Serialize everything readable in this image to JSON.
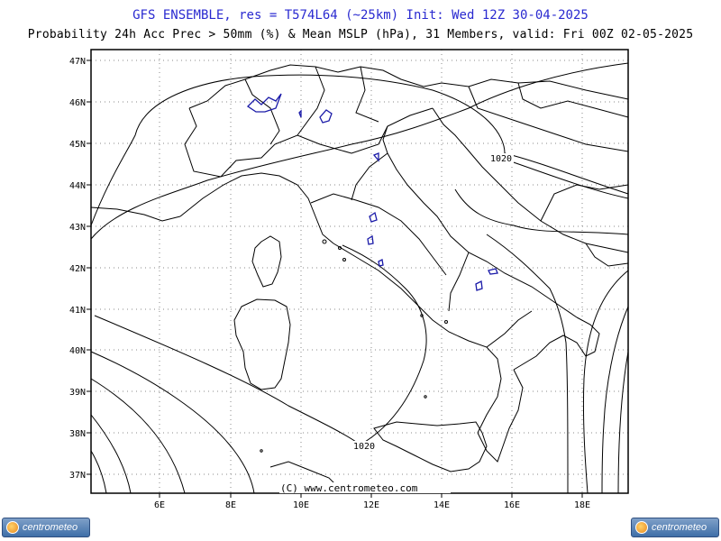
{
  "header": {
    "title": "GFS ENSEMBLE, res = T574L64 (~25km)   Init: Wed 12Z 30-04-2025",
    "subtitle": "Probability 24h Acc Prec > 50mm (%) & Mean MSLP (hPa), 31 Members, valid: Fri 00Z 02-05-2025"
  },
  "map": {
    "lat_labels": [
      "47N",
      "46N",
      "45N",
      "44N",
      "43N",
      "42N",
      "41N",
      "40N",
      "39N",
      "38N",
      "37N"
    ],
    "lon_labels": [
      "6E",
      "8E",
      "10E",
      "12E",
      "14E",
      "16E",
      "18E"
    ],
    "isobar_labels": [
      "1020",
      "1020"
    ],
    "copyright": "(C) www.centrometeo.com",
    "colors": {
      "frame": "#000000",
      "coast": "#000000",
      "isobar": "#000000",
      "grid": "#8a8a8a",
      "probability_contour": "#1a1aa8"
    }
  },
  "footer": {
    "logo_left": "centrometeo",
    "logo_right": "centrometeo"
  }
}
